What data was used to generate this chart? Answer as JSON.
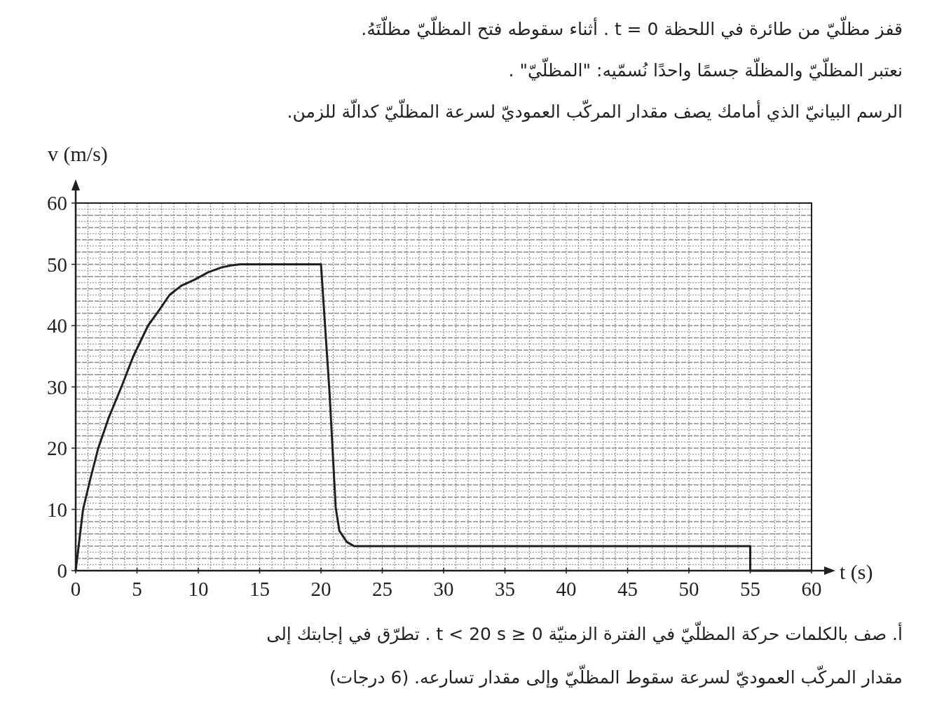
{
  "chart_data": {
    "type": "line",
    "title": "قفز مظلّيّ من طائرة في اللحظة t = 0 . أثناء سقوطه فتح المظلّيّ مظلّتَهُ.",
    "subtitle": "نعتبر المظلّيّ والمظلّة جسمًا واحدًا نُسمّيه: \"المظلّيّ\" .",
    "annotations": [
      "الرسم البيانيّ الذي أمامك يصف مقدار المركّب العموديّ لسرعة المظلّيّ كدالّة للزمن.",
      "أ.    صف بالكلمات حركة المظلّيّ في الفترة الزمنيّة 0 ≤ t < 20 s . تطرّق في إجابتك إلى",
      "مقدار المركّب العموديّ لسرعة سقوط المظلّيّ وإلى مقدار تسارعه. (6 درجات)"
    ],
    "xlabel": "t (s)",
    "ylabel": "v (m/s)",
    "x": [
      0,
      0.3,
      0.6,
      1.2,
      1.84,
      2.7,
      3.73,
      4.7,
      5.9,
      6.8,
      7.65,
      8.6,
      9.7,
      10.8,
      11.9,
      12.6,
      13.4,
      20,
      20.7,
      21.2,
      21.5,
      22.1,
      22.7,
      55,
      55,
      60
    ],
    "series": [
      {
        "color": "#231f20",
        "values": [
          0,
          5,
          10,
          15,
          20,
          25,
          30,
          35,
          40,
          42.5,
          45,
          46.5,
          47.5,
          48.7,
          49.5,
          49.8,
          50,
          50,
          29,
          10.3,
          6.5,
          4.7,
          4,
          4,
          0,
          0
        ]
      }
    ],
    "xlim": [
      0,
      60
    ],
    "ylim": [
      0,
      60
    ],
    "xticks": [
      0,
      5,
      10,
      15,
      20,
      25,
      30,
      35,
      40,
      45,
      50,
      55,
      60
    ],
    "yticks": [
      0,
      10,
      20,
      30,
      40,
      50,
      60
    ],
    "grid": true,
    "marker": "none",
    "line_style": "solid"
  }
}
